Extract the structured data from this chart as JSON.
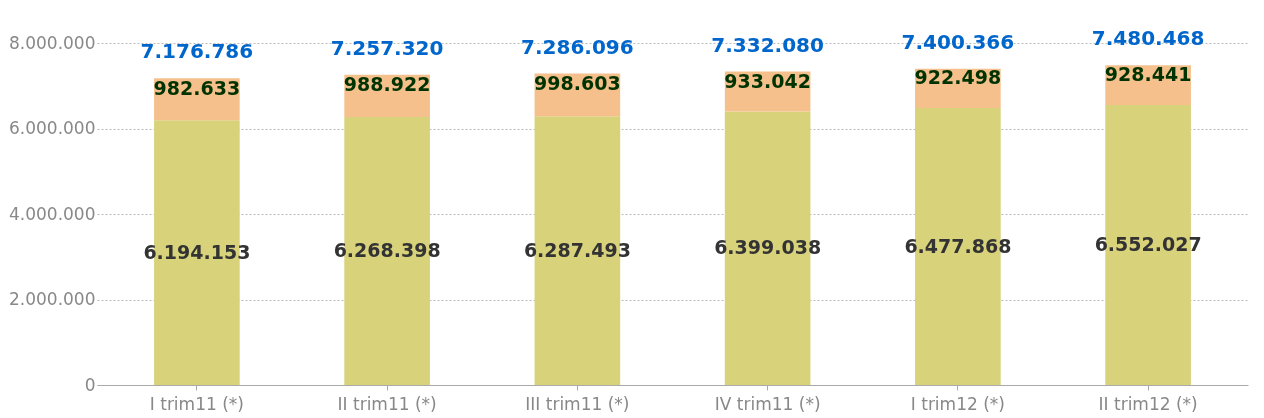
{
  "chart_data": {
    "type": "bar",
    "stacked": true,
    "categories": [
      "I trim11 (*)",
      "II trim11 (*)",
      "III trim11 (*)",
      "IV trim11 (*)",
      "I trim12 (*)",
      "II trim12 (*)"
    ],
    "series": [
      {
        "color": "#d8d27a",
        "values": [
          6194153,
          6268398,
          6287493,
          6399038,
          6477868,
          6552027
        ],
        "value_labels": [
          "6.194.153",
          "6.268.398",
          "6.287.493",
          "6.399.038",
          "6.477.868",
          "6.552.027"
        ]
      },
      {
        "color": "#f5c08c",
        "values": [
          982633,
          988922,
          998603,
          933042,
          922498,
          928441
        ],
        "value_labels": [
          "982.633",
          "988.922",
          "998.603",
          "933.042",
          "922.498",
          "928.441"
        ]
      }
    ],
    "totals": [
      "7.176.786",
      "7.257.320",
      "7.286.096",
      "7.332.080",
      "7.400.366",
      "7.480.468"
    ],
    "ylim": [
      0,
      8000000
    ],
    "yticks": [
      {
        "value": 0,
        "label": "0"
      },
      {
        "value": 2000000,
        "label": "2.000.000"
      },
      {
        "value": 4000000,
        "label": "4.000.000"
      },
      {
        "value": 6000000,
        "label": "6.000.000"
      },
      {
        "value": 8000000,
        "label": "8.000.000"
      }
    ],
    "grid": "y"
  }
}
